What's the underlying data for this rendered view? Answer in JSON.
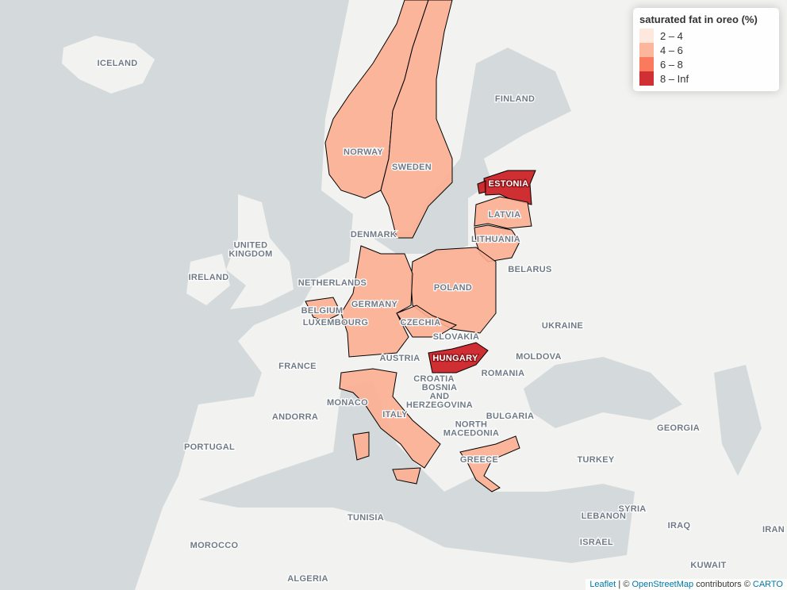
{
  "legend": {
    "title": "saturated fat in oreo (%)",
    "items": [
      {
        "label": "2 – 4",
        "color": "#fee5d9"
      },
      {
        "label": "4 – 6",
        "color": "#fcae91"
      },
      {
        "label": "6 – 8",
        "color": "#fb6a4a"
      },
      {
        "label": "8 – Inf",
        "color": "#cb181d"
      }
    ]
  },
  "places": [
    {
      "label": [
        "ICELAND"
      ]
    },
    {
      "label": [
        "FINLAND"
      ]
    },
    {
      "label": [
        "NORWAY"
      ],
      "bin": 1
    },
    {
      "label": [
        "SWEDEN"
      ],
      "bin": 1
    },
    {
      "label": [
        "ESTONIA"
      ],
      "bin": 3
    },
    {
      "label": [
        "LATVIA"
      ],
      "bin": 1
    },
    {
      "label": [
        "DENMARK"
      ]
    },
    {
      "label": [
        "LITHUANIA"
      ],
      "bin": 1
    },
    {
      "label": [
        "UNITED",
        "KINGDOM"
      ]
    },
    {
      "label": [
        "BELARUS"
      ]
    },
    {
      "label": [
        "IRELAND"
      ]
    },
    {
      "label": [
        "NETHERLANDS"
      ]
    },
    {
      "label": [
        "POLAND"
      ],
      "bin": 1
    },
    {
      "label": [
        "GERMANY"
      ],
      "bin": 1
    },
    {
      "label": [
        "BELGIUM"
      ],
      "bin": 1
    },
    {
      "label": [
        "LUXEMBOURG"
      ]
    },
    {
      "label": [
        "CZECHIA"
      ],
      "bin": 1
    },
    {
      "label": [
        "UKRAINE"
      ]
    },
    {
      "label": [
        "SLOVAKIA"
      ]
    },
    {
      "label": [
        "MOLDOVA"
      ]
    },
    {
      "label": [
        "HUNGARY"
      ],
      "bin": 3
    },
    {
      "label": [
        "AUSTRIA"
      ]
    },
    {
      "label": [
        "FRANCE"
      ]
    },
    {
      "label": [
        "ROMANIA"
      ]
    },
    {
      "label": [
        "CROATIA"
      ]
    },
    {
      "label": [
        "BOSNIA",
        "AND",
        "HERZEGOVINA"
      ]
    },
    {
      "label": [
        "MONACO"
      ]
    },
    {
      "label": [
        "ITALY"
      ],
      "bin": 1
    },
    {
      "label": [
        "BULGARIA"
      ]
    },
    {
      "label": [
        "ANDORRA"
      ]
    },
    {
      "label": [
        "NORTH",
        "MACEDONIA"
      ]
    },
    {
      "label": [
        "GEORGIA"
      ]
    },
    {
      "label": [
        "PORTUGAL"
      ]
    },
    {
      "label": [
        "TURKEY"
      ]
    },
    {
      "label": [
        "GREECE"
      ],
      "bin": 1
    },
    {
      "label": [
        "SYRIA"
      ]
    },
    {
      "label": [
        "LEBANON"
      ]
    },
    {
      "label": [
        "TUNISIA"
      ]
    },
    {
      "label": [
        "IRAQ"
      ]
    },
    {
      "label": [
        "IRAN"
      ]
    },
    {
      "label": [
        "MOROCCO"
      ]
    },
    {
      "label": [
        "ISRAEL"
      ]
    },
    {
      "label": [
        "KUWAIT"
      ]
    },
    {
      "label": [
        "ALGERIA"
      ]
    }
  ],
  "attribution": [
    "Leaflet",
    " | © ",
    "OpenStreetMap",
    " contributors © ",
    "CARTO"
  ]
}
